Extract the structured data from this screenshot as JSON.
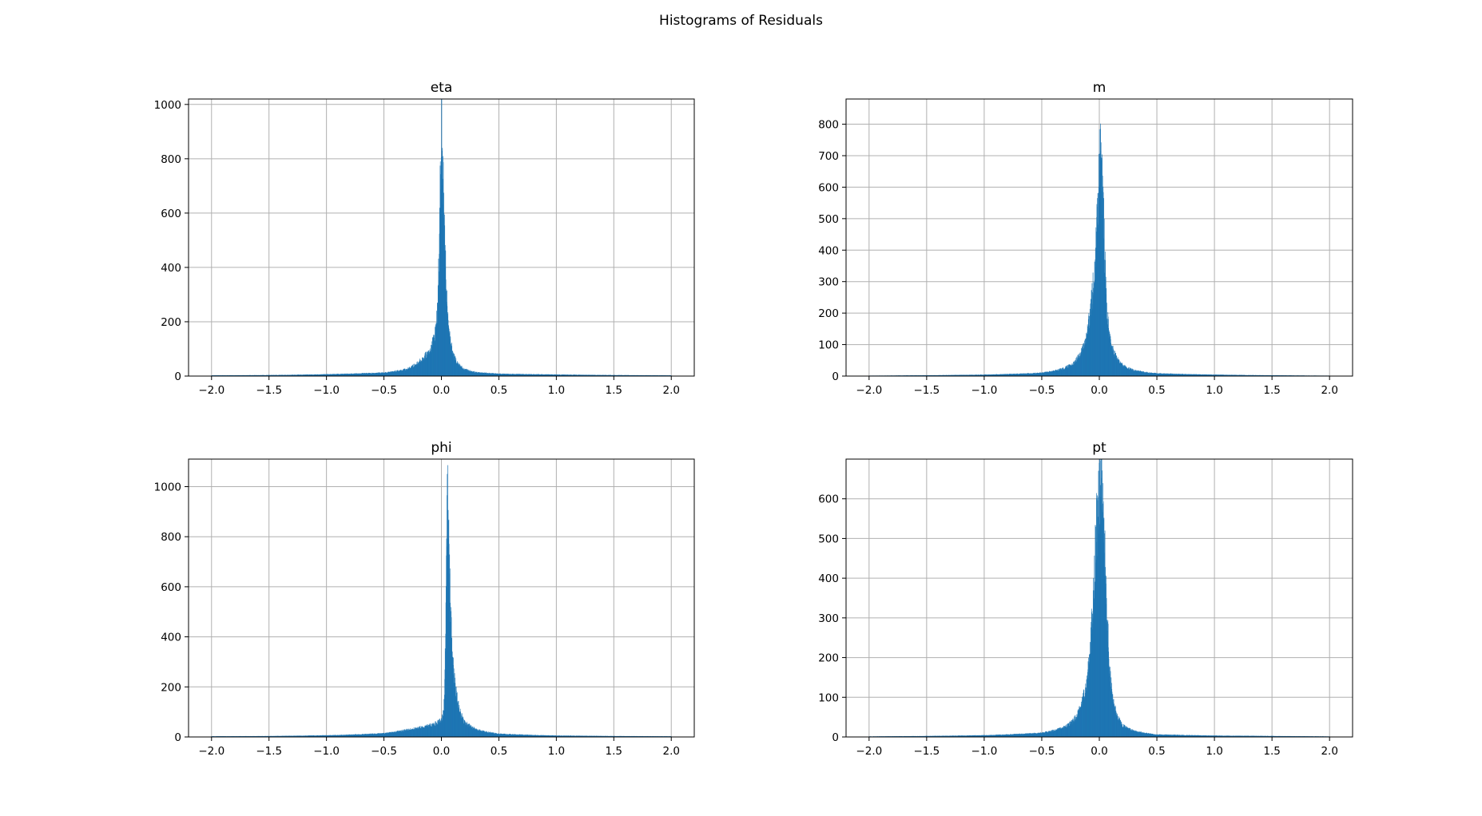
{
  "figure": {
    "suptitle": "Histograms of Residuals"
  },
  "colors": {
    "bar": "#1f77b4",
    "grid": "#b0b0b0",
    "axes": "#000000",
    "background": "#ffffff"
  },
  "chart_data": [
    {
      "type": "bar",
      "title": "eta",
      "xlabel": "",
      "ylabel": "",
      "grid": true,
      "xlim": [
        -2.2,
        2.2
      ],
      "ylim": [
        0,
        1020
      ],
      "xticks": [
        -2.0,
        -1.5,
        -1.0,
        -0.5,
        0.0,
        0.5,
        1.0,
        1.5,
        2.0
      ],
      "xtick_labels": [
        "−2.0",
        "−1.5",
        "−1.0",
        "−0.5",
        "0.0",
        "0.5",
        "1.0",
        "1.5",
        "2.0"
      ],
      "yticks": [
        0,
        200,
        400,
        600,
        800,
        1000
      ],
      "ytick_labels": [
        "0",
        "200",
        "400",
        "600",
        "800",
        "1000"
      ],
      "bins": {
        "start": -2.0,
        "end": 2.0
      },
      "x": [
        -2.0,
        -1.5,
        -1.0,
        -0.5,
        -0.3,
        -0.2,
        -0.1,
        -0.05,
        -0.03,
        -0.02,
        0.0,
        0.01,
        0.02,
        0.03,
        0.05,
        0.08,
        0.1,
        0.15,
        0.2,
        0.3,
        0.5,
        1.0,
        1.5,
        2.0
      ],
      "values": [
        2,
        3,
        6,
        12,
        25,
        50,
        95,
        170,
        280,
        480,
        970,
        760,
        640,
        470,
        280,
        130,
        80,
        45,
        25,
        14,
        8,
        5,
        3,
        2
      ]
    },
    {
      "type": "bar",
      "title": "m",
      "xlabel": "",
      "ylabel": "",
      "grid": true,
      "xlim": [
        -2.2,
        2.2
      ],
      "ylim": [
        0,
        880
      ],
      "xticks": [
        -2.0,
        -1.5,
        -1.0,
        -0.5,
        0.0,
        0.5,
        1.0,
        1.5,
        2.0
      ],
      "xtick_labels": [
        "−2.0",
        "−1.5",
        "−1.0",
        "−0.5",
        "0.0",
        "0.5",
        "1.0",
        "1.5",
        "2.0"
      ],
      "yticks": [
        0,
        100,
        200,
        300,
        400,
        500,
        600,
        700,
        800
      ],
      "ytick_labels": [
        "0",
        "100",
        "200",
        "300",
        "400",
        "500",
        "600",
        "700",
        "800"
      ],
      "bins": {
        "start": -2.0,
        "end": 2.0
      },
      "x": [
        -2.0,
        -1.5,
        -1.0,
        -0.5,
        -0.3,
        -0.2,
        -0.12,
        -0.08,
        -0.05,
        -0.03,
        -0.01,
        0.0,
        0.01,
        0.02,
        0.04,
        0.06,
        0.08,
        0.12,
        0.2,
        0.3,
        0.5,
        1.0,
        1.5,
        2.0
      ],
      "values": [
        1,
        2,
        4,
        10,
        25,
        50,
        110,
        200,
        300,
        400,
        560,
        700,
        840,
        720,
        470,
        260,
        150,
        80,
        35,
        18,
        8,
        4,
        2,
        1
      ]
    },
    {
      "type": "bar",
      "title": "phi",
      "xlabel": "",
      "ylabel": "",
      "grid": true,
      "xlim": [
        -2.2,
        2.2
      ],
      "ylim": [
        0,
        1110
      ],
      "xticks": [
        -2.0,
        -1.5,
        -1.0,
        -0.5,
        0.0,
        0.5,
        1.0,
        1.5,
        2.0
      ],
      "xtick_labels": [
        "−2.0",
        "−1.5",
        "−1.0",
        "−0.5",
        "0.0",
        "0.5",
        "1.0",
        "1.5",
        "2.0"
      ],
      "yticks": [
        0,
        200,
        400,
        600,
        800,
        1000
      ],
      "ytick_labels": [
        "0",
        "200",
        "400",
        "600",
        "800",
        "1000"
      ],
      "bins": {
        "start": -2.0,
        "end": 2.0
      },
      "x": [
        -2.0,
        -1.5,
        -1.0,
        -0.5,
        -0.3,
        -0.1,
        0.0,
        0.02,
        0.035,
        0.045,
        0.05,
        0.06,
        0.07,
        0.08,
        0.1,
        0.12,
        0.15,
        0.2,
        0.3,
        0.5,
        1.0,
        1.5,
        2.0
      ],
      "values": [
        2,
        3,
        6,
        14,
        28,
        45,
        65,
        110,
        380,
        820,
        1040,
        880,
        680,
        500,
        320,
        210,
        120,
        60,
        30,
        12,
        5,
        3,
        2
      ]
    },
    {
      "type": "bar",
      "title": "pt",
      "xlabel": "",
      "ylabel": "",
      "grid": true,
      "xlim": [
        -2.2,
        2.2
      ],
      "ylim": [
        0,
        700
      ],
      "xticks": [
        -2.0,
        -1.5,
        -1.0,
        -0.5,
        0.0,
        0.5,
        1.0,
        1.5,
        2.0
      ],
      "xtick_labels": [
        "−2.0",
        "−1.5",
        "−1.0",
        "−0.5",
        "0.0",
        "0.5",
        "1.0",
        "1.5",
        "2.0"
      ],
      "yticks": [
        0,
        100,
        200,
        300,
        400,
        500,
        600
      ],
      "ytick_labels": [
        "0",
        "100",
        "200",
        "300",
        "400",
        "500",
        "600"
      ],
      "bins": {
        "start": -2.0,
        "end": 2.0
      },
      "x": [
        -2.0,
        -1.5,
        -1.0,
        -0.5,
        -0.3,
        -0.2,
        -0.12,
        -0.08,
        -0.05,
        -0.03,
        -0.01,
        0.01,
        0.03,
        0.05,
        0.07,
        0.09,
        0.12,
        0.16,
        0.2,
        0.3,
        0.5,
        1.0,
        1.5,
        2.0
      ],
      "values": [
        1,
        2,
        4,
        10,
        25,
        50,
        120,
        220,
        360,
        500,
        600,
        660,
        610,
        470,
        300,
        170,
        90,
        50,
        30,
        15,
        6,
        3,
        2,
        1
      ]
    }
  ]
}
